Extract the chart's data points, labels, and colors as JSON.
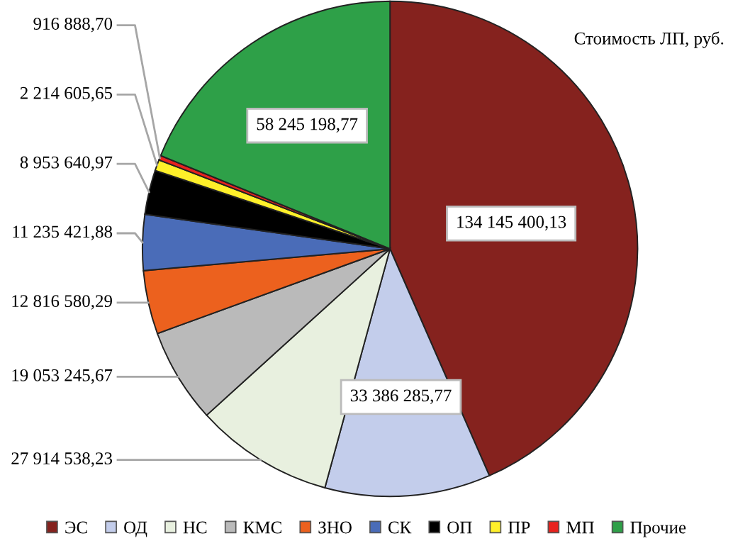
{
  "chart_data": {
    "type": "pie",
    "title": "Стоимость ЛП, руб.",
    "categories": [
      "ЭС",
      "ОД",
      "НС",
      "КМС",
      "ЗНО",
      "СК",
      "ОП",
      "ПР",
      "МП",
      "Прочие"
    ],
    "values": [
      134145400.13,
      33386285.77,
      27914538.23,
      19053245.67,
      12816580.29,
      11235421.88,
      8953640.97,
      2214605.65,
      916888.7,
      58245198.77
    ],
    "value_labels": [
      "134 145 400,13",
      "33 386 285,77",
      "27 914 538,23",
      "19 053 245,67",
      "12 816 580,29",
      "11 235 421,88",
      "8 953 640,97",
      "2 214 605,65",
      "916 888,70",
      "58 245 198,77"
    ],
    "colors": [
      "#85221e",
      "#c3cdeb",
      "#e8f0df",
      "#bababa",
      "#ec611e",
      "#4a6cb8",
      "#000000",
      "#fff02a",
      "#e8221e",
      "#2ea048"
    ],
    "legend": "bottom"
  }
}
